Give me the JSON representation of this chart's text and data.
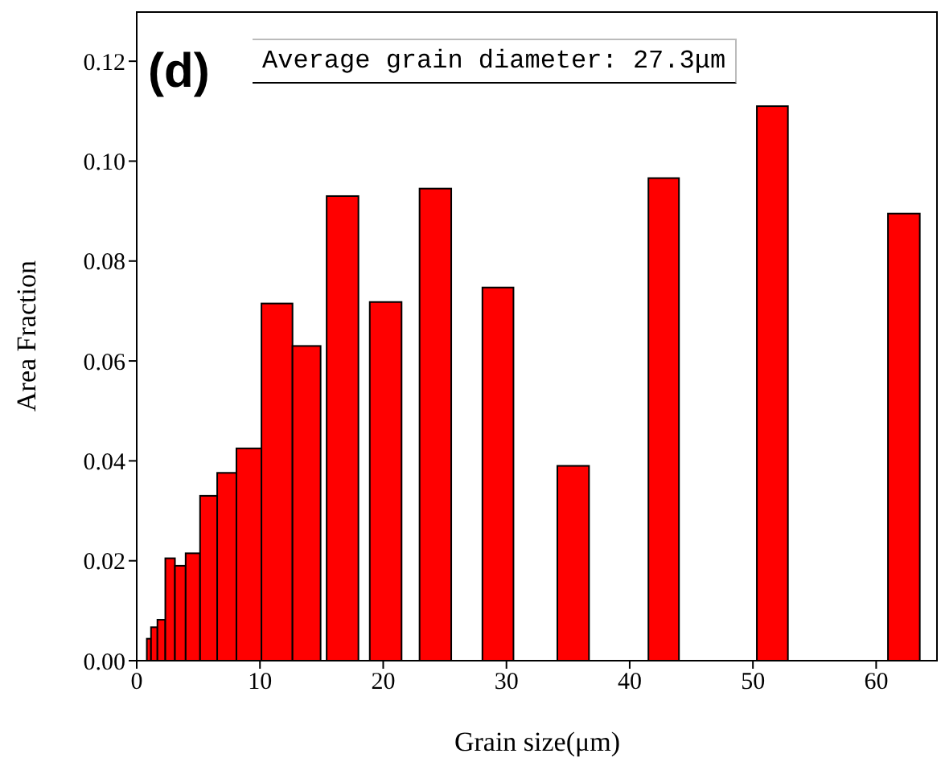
{
  "chart_data": {
    "type": "histogram",
    "xlabel": "Grain size(μm)",
    "ylabel": "Area Fraction",
    "color": "#ff0000",
    "annotations": [
      "(d)",
      "Average grain diameter: 27.3μm"
    ],
    "bins": [
      0.82,
      1.16,
      1.68,
      2.32,
      3.1,
      3.97,
      5.14,
      6.53,
      8.09,
      10.12,
      12.64,
      14.92,
      15.41,
      17.99,
      18.91,
      21.49,
      22.95,
      25.52,
      28.05,
      30.57,
      34.13,
      36.7,
      41.52,
      44.0,
      50.32,
      52.84,
      60.96,
      63.54
    ],
    "values": [
      0.0044,
      0.0067,
      0.0082,
      0.0205,
      0.019,
      0.0215,
      0.033,
      0.0376,
      0.0425,
      0.0715,
      0.063,
      0,
      0.093,
      0,
      0.0718,
      0,
      0.0945,
      0,
      0.0747,
      0,
      0.039,
      0,
      0.0966,
      0,
      0.111,
      0,
      0.0895
    ],
    "xlim": [
      0,
      65
    ],
    "xticks": [
      0,
      10,
      20,
      30,
      40,
      50,
      60
    ],
    "ylim": [
      0,
      0.13
    ],
    "yticks": [
      {
        "value": 0,
        "label": "0.00"
      },
      {
        "value": 0.02,
        "label": "0.02"
      },
      {
        "value": 0.04,
        "label": "0.04"
      },
      {
        "value": 0.06,
        "label": "0.06"
      },
      {
        "value": 0.08,
        "label": "0.08"
      },
      {
        "value": 0.1,
        "label": "0.10"
      },
      {
        "value": 0.12,
        "label": "0.12"
      }
    ],
    "grid": false,
    "legend": false
  }
}
